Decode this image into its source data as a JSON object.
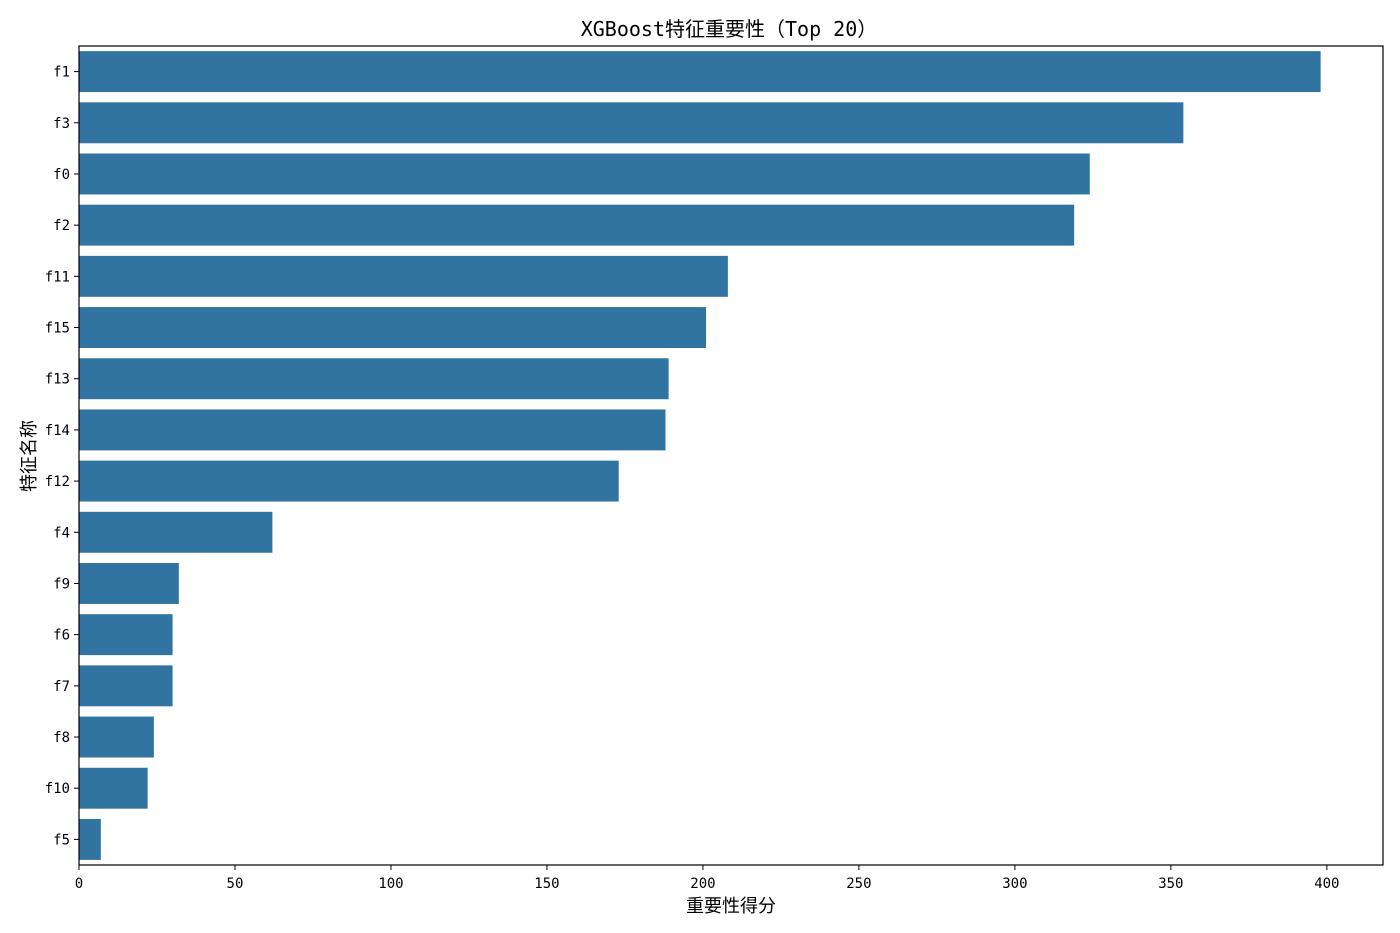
{
  "chart_data": {
    "type": "bar",
    "orientation": "horizontal",
    "title": "XGBoost特征重要性（Top 20）",
    "xlabel": "重要性得分",
    "ylabel": "特征名称",
    "categories": [
      "f1",
      "f3",
      "f0",
      "f2",
      "f11",
      "f15",
      "f13",
      "f14",
      "f12",
      "f4",
      "f9",
      "f6",
      "f7",
      "f8",
      "f10",
      "f5"
    ],
    "values": [
      398,
      354,
      324,
      319,
      208,
      201,
      189,
      188,
      173,
      62,
      32,
      30,
      30,
      24,
      22,
      7
    ],
    "xlim": [
      0,
      418
    ],
    "xticks": [
      0,
      50,
      100,
      150,
      200,
      250,
      300,
      350,
      400
    ],
    "grid": false,
    "bar_color": "#3274a1"
  }
}
